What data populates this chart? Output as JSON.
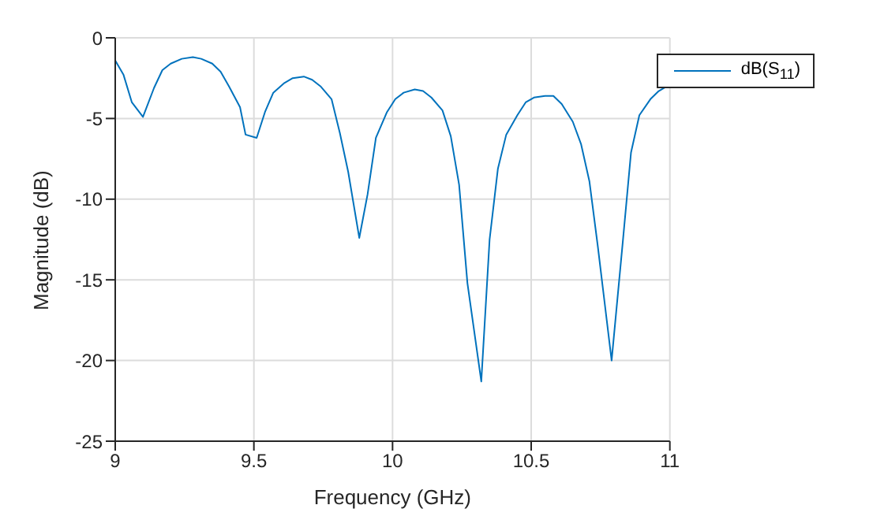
{
  "chart_data": {
    "type": "line",
    "xlabel": "Frequency (GHz)",
    "ylabel": "Magnitude (dB)",
    "x": [
      9.0,
      9.03,
      9.06,
      9.1,
      9.14,
      9.17,
      9.2,
      9.24,
      9.28,
      9.31,
      9.35,
      9.38,
      9.41,
      9.45,
      9.47,
      9.51,
      9.54,
      9.57,
      9.61,
      9.64,
      9.68,
      9.71,
      9.74,
      9.78,
      9.81,
      9.84,
      9.88,
      9.91,
      9.94,
      9.98,
      10.01,
      10.04,
      10.08,
      10.11,
      10.14,
      10.18,
      10.21,
      10.24,
      10.27,
      10.32,
      10.35,
      10.38,
      10.41,
      10.45,
      10.48,
      10.51,
      10.55,
      10.58,
      10.61,
      10.65,
      10.68,
      10.71,
      10.74,
      10.79,
      10.83,
      10.86,
      10.89,
      10.93,
      10.96,
      11.0
    ],
    "series": [
      {
        "name": "dB(S$_{11}$)",
        "color": "#0072bd",
        "values": [
          -1.4,
          -2.3,
          -4.0,
          -4.9,
          -3.1,
          -2.0,
          -1.6,
          -1.3,
          -1.2,
          -1.3,
          -1.6,
          -2.1,
          -3.0,
          -4.3,
          -6.0,
          -6.2,
          -4.6,
          -3.4,
          -2.8,
          -2.5,
          -2.4,
          -2.6,
          -3.0,
          -3.8,
          -5.9,
          -8.3,
          -12.4,
          -9.7,
          -6.2,
          -4.6,
          -3.8,
          -3.4,
          -3.2,
          -3.3,
          -3.7,
          -4.5,
          -6.1,
          -9.1,
          -15.2,
          -21.3,
          -12.5,
          -8.1,
          -6.0,
          -4.8,
          -4.0,
          -3.7,
          -3.6,
          -3.6,
          -4.1,
          -5.2,
          -6.6,
          -8.9,
          -12.9,
          -20.0,
          -12.7,
          -7.1,
          -4.8,
          -3.8,
          -3.3,
          -2.9
        ]
      }
    ],
    "xlim": [
      9,
      11
    ],
    "xticks": [
      9,
      9.5,
      10,
      10.5,
      11
    ],
    "ylim": [
      -25,
      0
    ],
    "yticks": [
      -25,
      -20,
      -15,
      -10,
      -5,
      0
    ],
    "grid": true,
    "legend": "top right",
    "marker": "none",
    "line_style": "solid"
  }
}
